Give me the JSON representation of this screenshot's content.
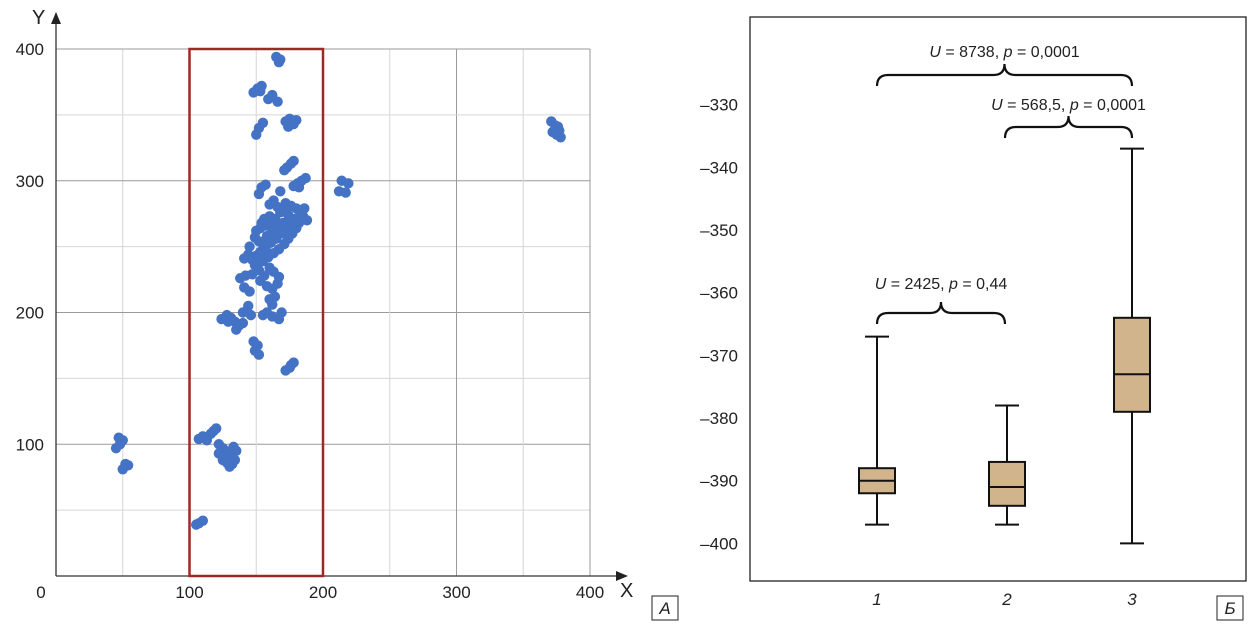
{
  "chart_data": [
    {
      "type": "scatter",
      "panel_label": "А",
      "xlabel": "X",
      "ylabel": "Y",
      "xlim": [
        0,
        400
      ],
      "ylim": [
        0,
        400
      ],
      "xticks": [
        "0",
        "100",
        "200",
        "300",
        "400"
      ],
      "yticks": [
        "100",
        "200",
        "300",
        "400"
      ],
      "grid": true,
      "point_color": "#4472c4",
      "highlight_rect": {
        "x": [
          100,
          200
        ],
        "y": [
          0,
          400
        ],
        "color": "#9b2a24"
      },
      "points": [
        [
          165,
          394
        ],
        [
          167,
          390
        ],
        [
          168,
          392
        ],
        [
          148,
          367
        ],
        [
          151,
          370
        ],
        [
          154,
          372
        ],
        [
          153,
          368
        ],
        [
          159,
          362
        ],
        [
          162,
          365
        ],
        [
          166,
          360
        ],
        [
          172,
          345
        ],
        [
          175,
          347
        ],
        [
          178,
          343
        ],
        [
          180,
          346
        ],
        [
          174,
          341
        ],
        [
          152,
          340
        ],
        [
          155,
          344
        ],
        [
          150,
          335
        ],
        [
          173,
          310
        ],
        [
          176,
          313
        ],
        [
          178,
          315
        ],
        [
          171,
          308
        ],
        [
          181,
          298
        ],
        [
          184,
          300
        ],
        [
          187,
          302
        ],
        [
          178,
          296
        ],
        [
          182,
          295
        ],
        [
          154,
          295
        ],
        [
          157,
          297
        ],
        [
          152,
          290
        ],
        [
          168,
          292
        ],
        [
          214,
          300
        ],
        [
          219,
          298
        ],
        [
          212,
          292
        ],
        [
          217,
          291
        ],
        [
          160,
          282
        ],
        [
          163,
          285
        ],
        [
          166,
          280
        ],
        [
          170,
          278
        ],
        [
          172,
          283
        ],
        [
          176,
          281
        ],
        [
          180,
          279
        ],
        [
          183,
          276
        ],
        [
          185,
          273
        ],
        [
          188,
          270
        ],
        [
          186,
          279
        ],
        [
          179,
          271
        ],
        [
          174,
          274
        ],
        [
          168,
          276
        ],
        [
          164,
          271
        ],
        [
          161,
          268
        ],
        [
          157,
          266
        ],
        [
          153,
          264
        ],
        [
          150,
          262
        ],
        [
          149,
          257
        ],
        [
          152,
          254
        ],
        [
          155,
          252
        ],
        [
          158,
          258
        ],
        [
          162,
          262
        ],
        [
          166,
          266
        ],
        [
          170,
          268
        ],
        [
          173,
          265
        ],
        [
          169,
          260
        ],
        [
          165,
          256
        ],
        [
          161,
          253
        ],
        [
          157,
          249
        ],
        [
          153,
          246
        ],
        [
          150,
          243
        ],
        [
          147,
          240
        ],
        [
          144,
          244
        ],
        [
          141,
          241
        ],
        [
          145,
          250
        ],
        [
          149,
          236
        ],
        [
          155,
          239
        ],
        [
          159,
          242
        ],
        [
          163,
          245
        ],
        [
          167,
          248
        ],
        [
          171,
          252
        ],
        [
          174,
          256
        ],
        [
          177,
          260
        ],
        [
          180,
          264
        ],
        [
          182,
          268
        ],
        [
          176,
          270
        ],
        [
          172,
          262
        ],
        [
          160,
          273
        ],
        [
          156,
          271
        ],
        [
          154,
          268
        ],
        [
          147,
          229
        ],
        [
          152,
          232
        ],
        [
          156,
          228
        ],
        [
          160,
          234
        ],
        [
          163,
          231
        ],
        [
          167,
          227
        ],
        [
          153,
          224
        ],
        [
          158,
          220
        ],
        [
          162,
          218
        ],
        [
          166,
          222
        ],
        [
          142,
          228
        ],
        [
          138,
          226
        ],
        [
          141,
          219
        ],
        [
          145,
          216
        ],
        [
          160,
          210
        ],
        [
          164,
          212
        ],
        [
          162,
          206
        ],
        [
          140,
          200
        ],
        [
          144,
          205
        ],
        [
          146,
          198
        ],
        [
          158,
          200
        ],
        [
          162,
          197
        ],
        [
          167,
          195
        ],
        [
          169,
          200
        ],
        [
          155,
          198
        ],
        [
          124,
          195
        ],
        [
          128,
          198
        ],
        [
          131,
          196
        ],
        [
          134,
          193
        ],
        [
          137,
          190
        ],
        [
          135,
          187
        ],
        [
          140,
          192
        ],
        [
          129,
          193
        ],
        [
          148,
          178
        ],
        [
          151,
          175
        ],
        [
          149,
          171
        ],
        [
          152,
          168
        ],
        [
          176,
          160
        ],
        [
          178,
          162
        ],
        [
          172,
          156
        ],
        [
          175,
          158
        ],
        [
          45,
          97
        ],
        [
          48,
          100
        ],
        [
          50,
          103
        ],
        [
          47,
          105
        ],
        [
          52,
          85
        ],
        [
          54,
          84
        ],
        [
          50,
          81
        ],
        [
          107,
          104
        ],
        [
          110,
          106
        ],
        [
          113,
          103
        ],
        [
          116,
          108
        ],
        [
          118,
          110
        ],
        [
          120,
          112
        ],
        [
          122,
          100
        ],
        [
          125,
          97
        ],
        [
          127,
          95
        ],
        [
          129,
          92
        ],
        [
          122,
          93
        ],
        [
          125,
          88
        ],
        [
          128,
          86
        ],
        [
          130,
          83
        ],
        [
          132,
          85
        ],
        [
          130,
          90
        ],
        [
          133,
          98
        ],
        [
          135,
          95
        ],
        [
          134,
          88
        ],
        [
          107,
          40
        ],
        [
          110,
          42
        ],
        [
          105,
          39
        ],
        [
          371,
          345
        ],
        [
          374,
          342
        ],
        [
          377,
          338
        ],
        [
          375,
          335
        ],
        [
          372,
          337
        ],
        [
          378,
          333
        ],
        [
          376,
          341
        ]
      ]
    },
    {
      "type": "box",
      "panel_label": "Б",
      "categories": [
        "1",
        "2",
        "3"
      ],
      "ylim": [
        -406,
        -316
      ],
      "yticks": [
        "–330",
        "–340",
        "–350",
        "–360",
        "–370",
        "–380",
        "–390",
        "–400"
      ],
      "box_color": "#d2b48c",
      "boxes": [
        {
          "min": -397,
          "q1": -392,
          "median": -390,
          "q3": -388,
          "max": -367
        },
        {
          "min": -397,
          "q1": -394,
          "median": -391,
          "q3": -387,
          "max": -378
        },
        {
          "min": -400,
          "q1": -379,
          "median": -373,
          "q3": -364,
          "max": -337
        }
      ],
      "annotations": [
        {
          "pair": [
            "1",
            "3"
          ],
          "U": "8738",
          "p": "0,0001",
          "color": "#222222"
        },
        {
          "pair": [
            "2",
            "3"
          ],
          "U": "568,5",
          "p": "0,0001",
          "color": "#222222"
        },
        {
          "pair": [
            "1",
            "2"
          ],
          "U": "2425",
          "p": "0,44",
          "color": "#e0231e"
        }
      ]
    }
  ]
}
